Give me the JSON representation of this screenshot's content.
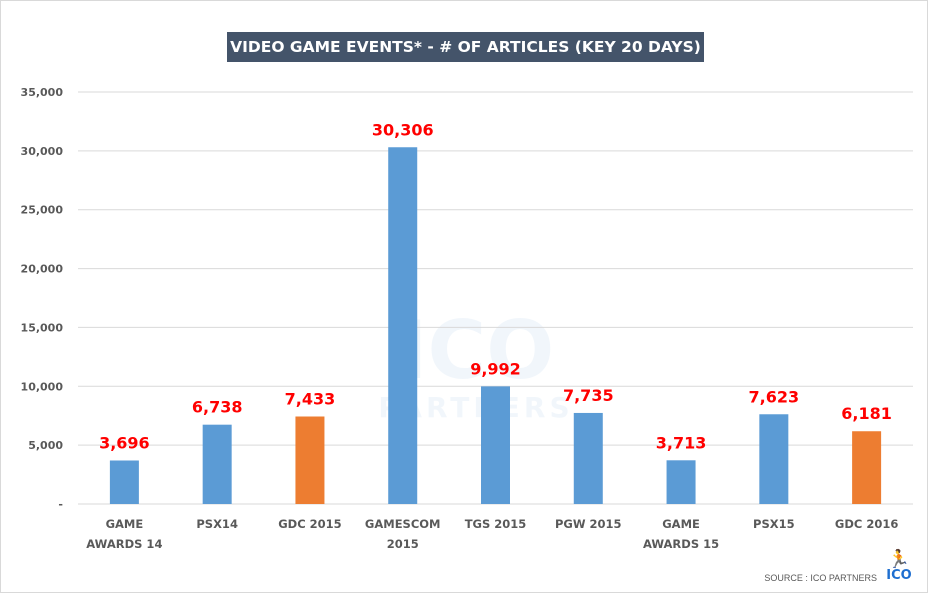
{
  "chart_data": {
    "type": "bar",
    "title": "VIDEO GAME EVENTS*  - # OF ARTICLES (KEY 20 DAYS)",
    "categories": [
      [
        "GAME",
        "AWARDS 14"
      ],
      [
        "PSX14"
      ],
      [
        "GDC 2015"
      ],
      [
        "GAMESCOM",
        "2015"
      ],
      [
        "TGS 2015"
      ],
      [
        "PGW 2015"
      ],
      [
        "GAME",
        "AWARDS 15"
      ],
      [
        "PSX15"
      ],
      [
        "GDC 2016"
      ]
    ],
    "values": [
      3696,
      6738,
      7433,
      30306,
      9992,
      7735,
      3713,
      7623,
      6181
    ],
    "data_labels": [
      "3,696",
      "6,738",
      "7,433",
      "30,306",
      "9,992",
      "7,735",
      "3,713",
      "7,623",
      "6,181"
    ],
    "bar_colors": [
      "#5b9bd5",
      "#5b9bd5",
      "#ed7d31",
      "#5b9bd5",
      "#5b9bd5",
      "#5b9bd5",
      "#5b9bd5",
      "#5b9bd5",
      "#ed7d31"
    ],
    "ylim": [
      0,
      35000
    ],
    "yticks": [
      0,
      5000,
      10000,
      15000,
      20000,
      25000,
      30000,
      35000
    ],
    "ytick_labels": [
      "-",
      "5,000",
      "10,000",
      "15,000",
      "20,000",
      "25,000",
      "30,000",
      "35,000"
    ],
    "grid": true,
    "legend": "none",
    "label_color": "#ff0000"
  },
  "watermark": {
    "line1": "ICO",
    "line2": "PARTNERS"
  },
  "source": "SOURCE : ICO PARTNERS",
  "logo": {
    "text": "ICO",
    "icon": "runner-icon"
  }
}
